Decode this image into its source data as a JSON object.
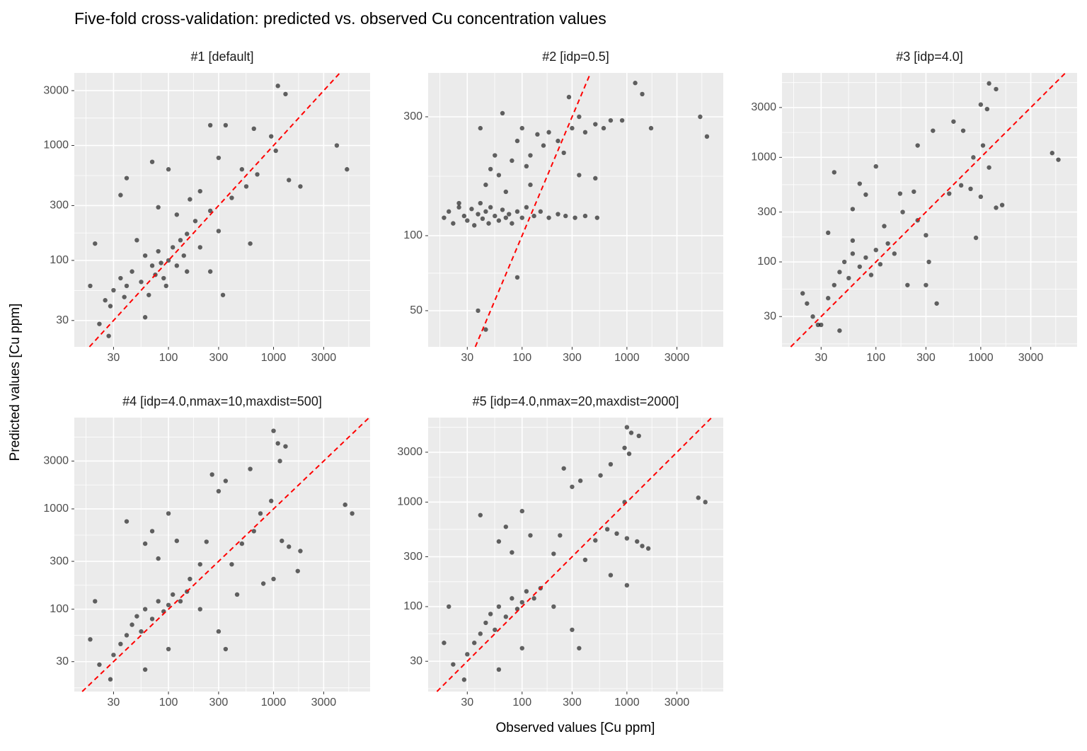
{
  "title": "Five-fold cross-validation: predicted vs. observed Cu concentration values",
  "x_label": "Observed values [Cu ppm]",
  "y_label": "Predicted values [Cu ppm]",
  "chart_data": [
    {
      "type": "scatter",
      "title": "#1 [default]",
      "color": "#000000",
      "alpha": 0.6,
      "xscale": "log",
      "yscale": "log",
      "grid": true,
      "xlim": [
        12.7,
        8300
      ],
      "ylim": [
        17.7,
        4280
      ],
      "xticks": [
        30,
        100,
        300,
        1000,
        3000
      ],
      "yticks": [
        30,
        100,
        300,
        1000,
        3000
      ],
      "x": [
        1100,
        1300,
        250,
        350,
        650,
        950,
        1050,
        4000,
        5000,
        300,
        40,
        70,
        100,
        500,
        700,
        1400,
        1800,
        550,
        200,
        20,
        330,
        22,
        27,
        60,
        150,
        250,
        600,
        400,
        160,
        80,
        35,
        120,
        180,
        250,
        300,
        50,
        60,
        70,
        80,
        90,
        100,
        110,
        120,
        130,
        140,
        40,
        45,
        30,
        25,
        35,
        55,
        65,
        75,
        85,
        95,
        150,
        200,
        18,
        28,
        38
      ],
      "y": [
        3300,
        2800,
        1500,
        1500,
        1400,
        1200,
        900,
        1000,
        620,
        780,
        520,
        720,
        620,
        620,
        560,
        500,
        440,
        440,
        400,
        140,
        50,
        28,
        22,
        32,
        80,
        80,
        140,
        350,
        340,
        290,
        370,
        250,
        220,
        270,
        180,
        150,
        110,
        90,
        120,
        70,
        100,
        130,
        90,
        150,
        110,
        60,
        80,
        55,
        45,
        70,
        65,
        50,
        75,
        95,
        60,
        170,
        130,
        60,
        40,
        48
      ]
    },
    {
      "type": "scatter",
      "title": "#2 [idp=0.5]",
      "color": "#000000",
      "alpha": 0.6,
      "xscale": "log",
      "yscale": "log",
      "grid": true,
      "xlim": [
        12.7,
        8300
      ],
      "ylim": [
        35.8,
        450
      ],
      "xticks": [
        30,
        100,
        300,
        1000,
        3000
      ],
      "yticks": [
        50,
        100,
        300
      ],
      "x": [
        18,
        20,
        22,
        25,
        28,
        30,
        33,
        35,
        38,
        40,
        42,
        45,
        48,
        50,
        55,
        60,
        65,
        70,
        75,
        80,
        90,
        100,
        110,
        130,
        150,
        180,
        220,
        260,
        320,
        400,
        520,
        40,
        45,
        50,
        55,
        60,
        65,
        70,
        80,
        90,
        100,
        110,
        120,
        140,
        160,
        180,
        220,
        250,
        280,
        300,
        350,
        400,
        500,
        600,
        700,
        900,
        1200,
        1400,
        1700,
        5000,
        5800,
        350,
        500,
        120,
        38,
        45,
        90,
        25
      ],
      "y": [
        118,
        125,
        112,
        130,
        120,
        115,
        128,
        110,
        122,
        135,
        117,
        125,
        112,
        130,
        120,
        115,
        127,
        118,
        122,
        112,
        125,
        118,
        130,
        120,
        125,
        118,
        122,
        120,
        118,
        120,
        118,
        270,
        160,
        185,
        210,
        175,
        310,
        150,
        200,
        240,
        270,
        190,
        210,
        255,
        230,
        260,
        240,
        215,
        360,
        270,
        300,
        260,
        280,
        270,
        290,
        290,
        410,
        370,
        270,
        300,
        250,
        175,
        170,
        160,
        50,
        42,
        68,
        135
      ]
    },
    {
      "type": "scatter",
      "title": "#3 [idp=4.0]",
      "color": "#000000",
      "alpha": 0.6,
      "xscale": "log",
      "yscale": "log",
      "grid": true,
      "xlim": [
        12.7,
        8300
      ],
      "ylim": [
        15.4,
        6430
      ],
      "xticks": [
        30,
        100,
        300,
        1000,
        3000
      ],
      "yticks": [
        30,
        100,
        300,
        1000,
        3000
      ],
      "x": [
        1200,
        1400,
        1000,
        1150,
        550,
        350,
        680,
        250,
        850,
        1050,
        1200,
        4800,
        5500,
        40,
        70,
        100,
        80,
        60,
        170,
        230,
        500,
        650,
        800,
        1000,
        1600,
        1400,
        900,
        300,
        120,
        180,
        250,
        320,
        380,
        20,
        25,
        30,
        22,
        35,
        40,
        45,
        50,
        55,
        60,
        70,
        80,
        90,
        100,
        110,
        130,
        150,
        35,
        28,
        45,
        60,
        200,
        300
      ],
      "y": [
        5100,
        4500,
        3200,
        2900,
        2200,
        1800,
        1800,
        1300,
        1000,
        1300,
        800,
        1100,
        950,
        720,
        560,
        820,
        440,
        320,
        450,
        470,
        450,
        540,
        500,
        420,
        350,
        330,
        170,
        180,
        220,
        300,
        250,
        100,
        40,
        50,
        30,
        25,
        40,
        45,
        60,
        80,
        100,
        70,
        120,
        90,
        110,
        75,
        130,
        95,
        150,
        120,
        190,
        25,
        22,
        160,
        60,
        60
      ]
    },
    {
      "type": "scatter",
      "title": "#4 [idp=4.0,nmax=10,maxdist=500]",
      "color": "#000000",
      "alpha": 0.6,
      "xscale": "log",
      "yscale": "log",
      "grid": true,
      "xlim": [
        12.7,
        8300
      ],
      "ylim": [
        15.1,
        8130
      ],
      "xticks": [
        30,
        100,
        300,
        1000,
        3000
      ],
      "yticks": [
        30,
        100,
        300,
        1000,
        3000
      ],
      "x": [
        1000,
        1100,
        1300,
        1150,
        600,
        350,
        260,
        300,
        950,
        4800,
        5600,
        40,
        70,
        100,
        120,
        230,
        500,
        650,
        750,
        1200,
        1400,
        1800,
        1700,
        1000,
        800,
        400,
        200,
        160,
        80,
        60,
        450,
        350,
        20,
        18,
        22,
        28,
        30,
        35,
        40,
        45,
        50,
        55,
        60,
        70,
        80,
        90,
        100,
        110,
        130,
        150,
        60,
        100,
        300,
        200
      ],
      "y": [
        6000,
        4500,
        4200,
        3000,
        2500,
        1900,
        2200,
        1500,
        1200,
        1100,
        900,
        750,
        600,
        900,
        480,
        470,
        450,
        600,
        900,
        480,
        420,
        380,
        240,
        200,
        180,
        280,
        280,
        200,
        320,
        450,
        140,
        40,
        120,
        50,
        28,
        20,
        35,
        45,
        55,
        70,
        85,
        60,
        100,
        80,
        120,
        95,
        110,
        140,
        120,
        150,
        25,
        40,
        60,
        100
      ]
    },
    {
      "type": "scatter",
      "title": "#5 [idp=4.0,nmax=20,maxdist=2000]",
      "color": "#000000",
      "alpha": 0.6,
      "xscale": "log",
      "yscale": "log",
      "grid": true,
      "xlim": [
        12.7,
        8300
      ],
      "ylim": [
        15.4,
        6430
      ],
      "xticks": [
        30,
        100,
        300,
        1000,
        3000
      ],
      "yticks": [
        30,
        100,
        300,
        1000,
        3000
      ],
      "x": [
        1000,
        1100,
        1300,
        950,
        1050,
        700,
        560,
        360,
        250,
        300,
        950,
        4800,
        5600,
        40,
        70,
        100,
        120,
        230,
        500,
        650,
        800,
        1000,
        1250,
        1400,
        1600,
        1000,
        700,
        400,
        200,
        80,
        60,
        350,
        20,
        18,
        22,
        28,
        30,
        35,
        40,
        45,
        50,
        55,
        60,
        70,
        80,
        90,
        100,
        110,
        130,
        150,
        60,
        100,
        300,
        200
      ],
      "y": [
        5200,
        4600,
        4300,
        3300,
        2900,
        2300,
        1800,
        1600,
        2100,
        1400,
        1000,
        1100,
        1000,
        750,
        580,
        820,
        480,
        480,
        430,
        550,
        500,
        450,
        420,
        380,
        360,
        160,
        200,
        280,
        320,
        330,
        420,
        40,
        100,
        45,
        28,
        20,
        35,
        45,
        55,
        70,
        85,
        60,
        100,
        80,
        120,
        95,
        110,
        140,
        120,
        150,
        25,
        40,
        60,
        100
      ]
    }
  ]
}
